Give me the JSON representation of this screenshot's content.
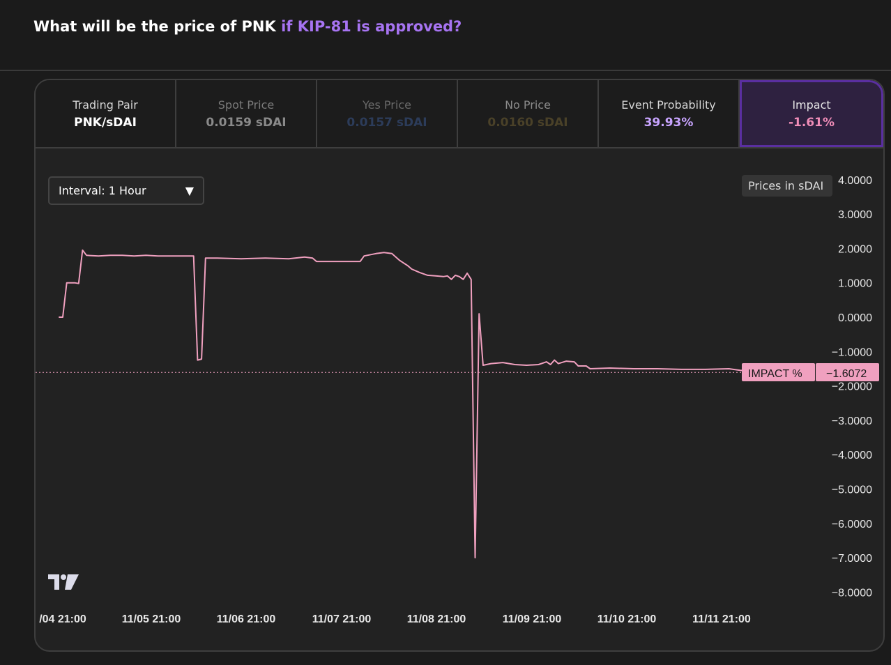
{
  "question": {
    "prefix": "What will be the price of PNK",
    "suffix": "if KIP-81 is approved?"
  },
  "stats": [
    {
      "label": "Trading Pair",
      "value": "PNK/sDAI"
    },
    {
      "label": "Spot Price",
      "value": "0.0159 sDAI"
    },
    {
      "label": "Yes Price",
      "value": "0.0157 sDAI"
    },
    {
      "label": "No Price",
      "value": "0.0160 sDAI"
    },
    {
      "label": "Event Probability",
      "value": "39.93%"
    },
    {
      "label": "Impact",
      "value": "-1.61%"
    }
  ],
  "interval": {
    "label": "Interval: 1 Hour",
    "caret": "▼"
  },
  "prices_in": "Prices in sDAI",
  "impact_marker": {
    "label": "IMPACT %",
    "value": "−1.6072"
  },
  "colors": {
    "accent": "#a774f2",
    "line": "#f0a0bf",
    "impact_bg": "#2e2140"
  },
  "icons": {
    "tradingview": "tradingview-logo-icon"
  },
  "chart_data": {
    "type": "line",
    "series": [
      {
        "name": "IMPACT %",
        "points": [
          [
            "11/04 20:00",
            0.0
          ],
          [
            "11/04 21:00",
            0.0
          ],
          [
            "11/04 22:00",
            1.0
          ],
          [
            "11/04 23:00",
            1.0
          ],
          [
            "11/05 00:00",
            1.0
          ],
          [
            "11/05 01:00",
            0.98
          ],
          [
            "11/05 02:00",
            1.95
          ],
          [
            "11/05 03:00",
            1.8
          ],
          [
            "11/05 06:00",
            1.78
          ],
          [
            "11/05 09:00",
            1.8
          ],
          [
            "11/05 12:00",
            1.8
          ],
          [
            "11/05 15:00",
            1.78
          ],
          [
            "11/05 18:00",
            1.8
          ],
          [
            "11/05 21:00",
            1.78
          ],
          [
            "11/06 00:00",
            1.78
          ],
          [
            "11/06 04:00",
            1.78
          ],
          [
            "11/06 06:00",
            1.78
          ],
          [
            "11/06 07:00",
            -1.25
          ],
          [
            "11/06 08:00",
            -1.22
          ],
          [
            "11/06 09:00",
            1.72
          ],
          [
            "11/06 12:00",
            1.72
          ],
          [
            "11/06 18:00",
            1.7
          ],
          [
            "11/07 00:00",
            1.72
          ],
          [
            "11/07 06:00",
            1.7
          ],
          [
            "11/07 10:00",
            1.75
          ],
          [
            "11/07 12:00",
            1.72
          ],
          [
            "11/07 13:00",
            1.62
          ],
          [
            "11/07 20:00",
            1.62
          ],
          [
            "11/08 00:00",
            1.62
          ],
          [
            "11/08 01:00",
            1.78
          ],
          [
            "11/08 04:00",
            1.85
          ],
          [
            "11/08 06:00",
            1.88
          ],
          [
            "11/08 08:00",
            1.85
          ],
          [
            "11/08 10:00",
            1.65
          ],
          [
            "11/08 12:00",
            1.5
          ],
          [
            "11/08 13:00",
            1.4
          ],
          [
            "11/08 15:00",
            1.3
          ],
          [
            "11/08 17:00",
            1.22
          ],
          [
            "11/08 19:00",
            1.2
          ],
          [
            "11/08 21:00",
            1.18
          ],
          [
            "11/08 22:00",
            1.2
          ],
          [
            "11/08 23:00",
            1.1
          ],
          [
            "11/09 00:00",
            1.22
          ],
          [
            "11/09 01:00",
            1.18
          ],
          [
            "11/09 02:00",
            1.1
          ],
          [
            "11/09 03:00",
            1.28
          ],
          [
            "11/09 04:00",
            1.1
          ],
          [
            "11/09 05:00",
            -7.0
          ],
          [
            "11/09 06:00",
            0.1
          ],
          [
            "11/09 07:00",
            -1.4
          ],
          [
            "11/09 09:00",
            -1.35
          ],
          [
            "11/09 12:00",
            -1.32
          ],
          [
            "11/09 15:00",
            -1.38
          ],
          [
            "11/09 18:00",
            -1.4
          ],
          [
            "11/09 21:00",
            -1.38
          ],
          [
            "11/09 23:00",
            -1.3
          ],
          [
            "11/10 00:00",
            -1.38
          ],
          [
            "11/10 01:00",
            -1.25
          ],
          [
            "11/10 02:00",
            -1.35
          ],
          [
            "11/10 04:00",
            -1.28
          ],
          [
            "11/10 06:00",
            -1.3
          ],
          [
            "11/10 07:00",
            -1.42
          ],
          [
            "11/10 09:00",
            -1.42
          ],
          [
            "11/10 10:00",
            -1.5
          ],
          [
            "11/10 15:00",
            -1.48
          ],
          [
            "11/10 21:00",
            -1.5
          ],
          [
            "11/11 03:00",
            -1.5
          ],
          [
            "11/11 09:00",
            -1.52
          ],
          [
            "11/11 15:00",
            -1.52
          ],
          [
            "11/11 21:00",
            -1.5
          ],
          [
            "11/12 00:00",
            -1.55
          ],
          [
            "11/12 03:00",
            -1.55
          ],
          [
            "11/12 04:00",
            -1.6072
          ]
        ]
      }
    ],
    "x_tick_labels": [
      "/04 21:00",
      "11/05 21:00",
      "11/06 21:00",
      "11/07 21:00",
      "11/08 21:00",
      "11/09 21:00",
      "11/10 21:00",
      "11/11 21:00"
    ],
    "y_tick_labels": [
      "4.0000",
      "3.0000",
      "2.0000",
      "1.0000",
      "0.0000",
      "−1.0000",
      "−2.0000",
      "−3.0000",
      "−4.0000",
      "−5.0000",
      "−6.0000",
      "−7.0000",
      "−8.0000"
    ],
    "ylim": [
      -8,
      4
    ],
    "price_line": -1.6072,
    "grid": false
  }
}
